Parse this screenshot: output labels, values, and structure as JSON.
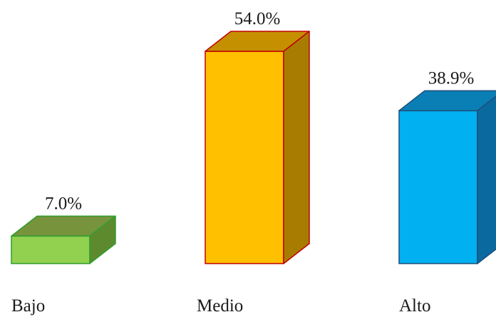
{
  "chart_data": {
    "type": "bar",
    "style": "3d",
    "categories": [
      "Bajo",
      "Medio",
      "Alto"
    ],
    "values": [
      7.0,
      54.0,
      38.9
    ],
    "value_labels": [
      "7.0%",
      "54.0%",
      "38.9%"
    ],
    "unit": "%",
    "title": "",
    "xlabel": "",
    "ylabel": "",
    "grid": false,
    "legend": "none",
    "colors": [
      {
        "front": "#92d050",
        "top": "#77933c",
        "side": "#5e8a2e",
        "edge": "#2f9e2f"
      },
      {
        "front": "#ffc000",
        "top": "#c49000",
        "side": "#a87c00",
        "edge": "#c00000"
      },
      {
        "front": "#00b0f0",
        "top": "#0a7fb5",
        "side": "#0a6aa0",
        "edge": "#1f4e79"
      }
    ]
  }
}
